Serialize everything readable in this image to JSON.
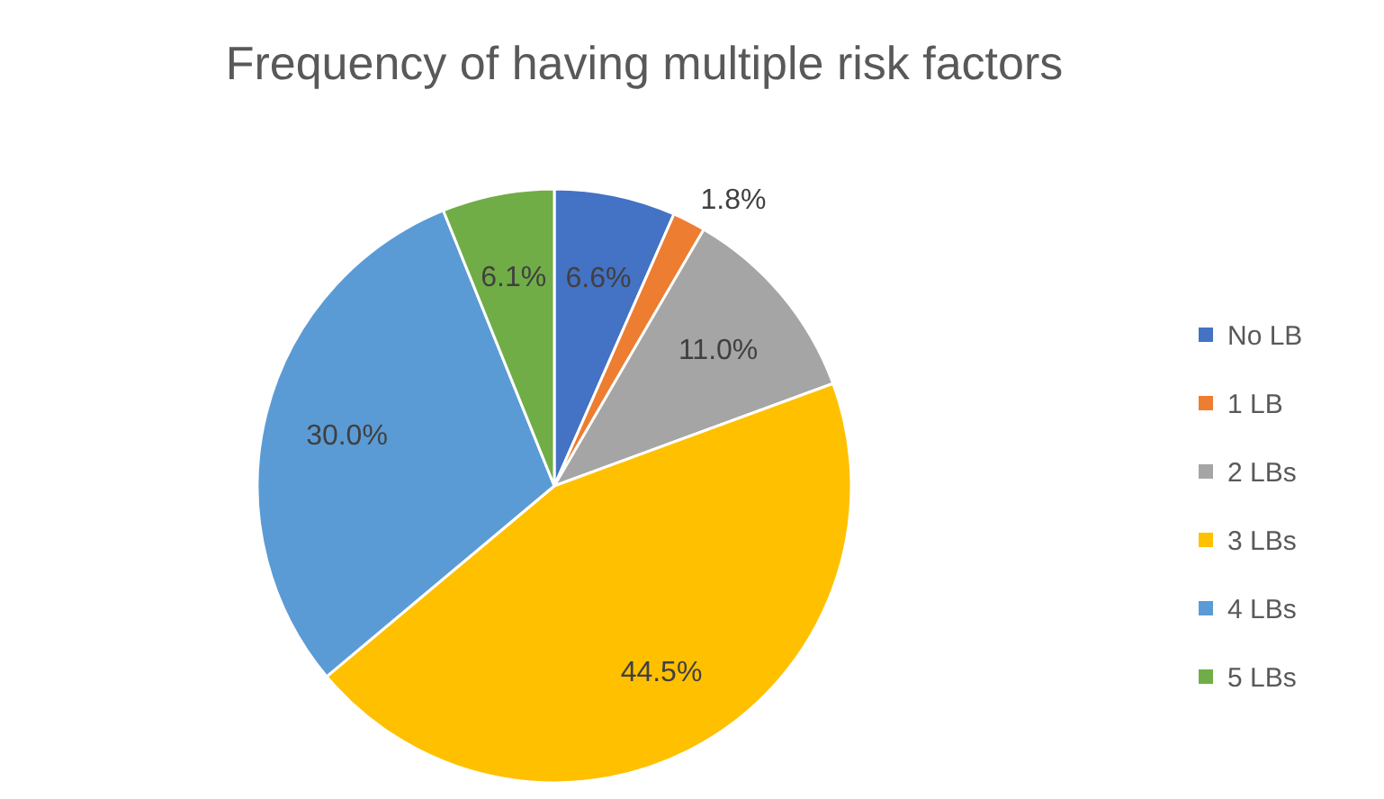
{
  "chart_data": {
    "type": "pie",
    "title": "Frequency of having multiple risk factors",
    "categories": [
      "No LB",
      "1 LB",
      "2 LBs",
      "3 LBs",
      "4 LBs",
      "5 LBs"
    ],
    "values": [
      6.6,
      1.8,
      11.0,
      44.5,
      30.0,
      6.1
    ],
    "value_labels": [
      "6.6%",
      "1.8%",
      "11.0%",
      "44.5%",
      "30.0%",
      "6.1%"
    ],
    "colors": [
      "#4472c4",
      "#ed7d31",
      "#a5a5a5",
      "#ffc000",
      "#5b9bd5",
      "#70ad47"
    ],
    "legend": "right"
  }
}
